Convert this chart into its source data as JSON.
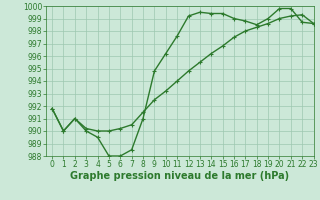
{
  "line1_x": [
    0,
    1,
    2,
    3,
    4,
    5,
    6,
    7,
    8,
    9,
    10,
    11,
    12,
    13,
    14,
    15,
    16,
    17,
    18,
    19,
    20,
    21,
    22,
    23
  ],
  "line1_y": [
    991.8,
    990.0,
    991.0,
    990.0,
    989.5,
    988.0,
    988.0,
    988.5,
    991.0,
    994.8,
    996.2,
    997.6,
    999.2,
    999.5,
    999.4,
    999.4,
    999.0,
    998.8,
    998.5,
    999.0,
    999.8,
    999.8,
    998.7,
    998.6
  ],
  "line2_x": [
    0,
    1,
    2,
    3,
    4,
    5,
    6,
    7,
    8,
    9,
    10,
    11,
    12,
    13,
    14,
    15,
    16,
    17,
    18,
    19,
    20,
    21,
    22,
    23
  ],
  "line2_y": [
    991.8,
    990.0,
    991.0,
    990.2,
    990.0,
    990.0,
    990.2,
    990.5,
    991.5,
    992.5,
    993.2,
    994.0,
    994.8,
    995.5,
    996.2,
    996.8,
    997.5,
    998.0,
    998.3,
    998.6,
    999.0,
    999.2,
    999.3,
    998.6
  ],
  "line_color": "#2d7a2d",
  "bg_color": "#cce8d8",
  "grid_color": "#9ec8b0",
  "xlabel": "Graphe pression niveau de la mer (hPa)",
  "ylim": [
    988,
    1000
  ],
  "xlim": [
    -0.5,
    23
  ],
  "yticks": [
    988,
    989,
    990,
    991,
    992,
    993,
    994,
    995,
    996,
    997,
    998,
    999,
    1000
  ],
  "xticks": [
    0,
    1,
    2,
    3,
    4,
    5,
    6,
    7,
    8,
    9,
    10,
    11,
    12,
    13,
    14,
    15,
    16,
    17,
    18,
    19,
    20,
    21,
    22,
    23
  ],
  "marker": "+",
  "marker_size": 3,
  "line_width": 1.0,
  "xlabel_fontsize": 7,
  "tick_fontsize": 5.5
}
